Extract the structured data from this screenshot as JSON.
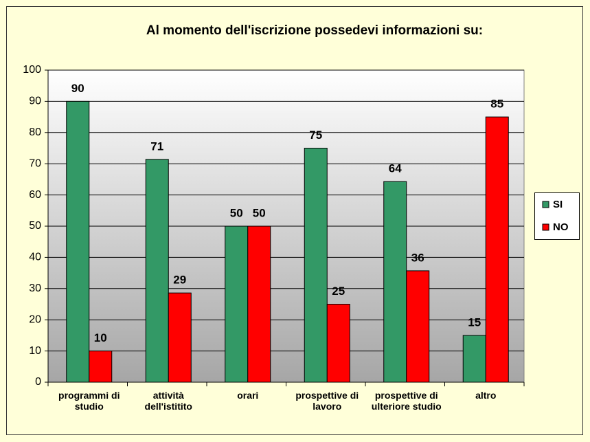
{
  "chart_data": {
    "type": "bar",
    "title": "Al momento dell'iscrizione  possedevi  informazioni  su:",
    "categories": [
      "programmi di studio",
      "attività dell'istitito",
      "orari",
      "prospettive di lavoro",
      "prospettive  di ulteriore studio",
      "altro"
    ],
    "series": [
      {
        "name": "SI",
        "color": "#339966",
        "values": [
          90,
          71.4,
          50,
          75,
          64.3,
          15
        ],
        "value_labels": [
          "90",
          "71",
          "50",
          "75",
          "64",
          "15"
        ]
      },
      {
        "name": "NO",
        "color": "#ff0000",
        "values": [
          10,
          28.6,
          50,
          25,
          35.7,
          85
        ],
        "value_labels": [
          "10",
          "29",
          "50",
          "25",
          "36",
          "85"
        ]
      }
    ],
    "ylim": [
      0,
      100
    ],
    "yticks": [
      0,
      10,
      20,
      30,
      40,
      50,
      60,
      70,
      80,
      90,
      100
    ],
    "grid": true,
    "legend": "right"
  }
}
